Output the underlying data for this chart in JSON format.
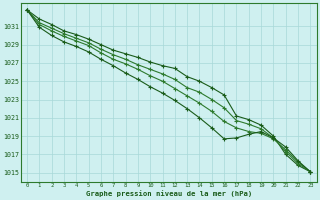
{
  "xlabel": "Graphe pression niveau de la mer (hPa)",
  "bg_color": "#cff0f0",
  "grid_color": "#a8d8d8",
  "line_colors": [
    "#1a5c1a",
    "#2d7a2d",
    "#2d7a2d",
    "#1a5c1a"
  ],
  "ylim": [
    1014.0,
    1033.5
  ],
  "xlim": [
    -0.5,
    23.5
  ],
  "yticks": [
    1015,
    1017,
    1019,
    1021,
    1023,
    1025,
    1027,
    1029,
    1031
  ],
  "xticks": [
    0,
    1,
    2,
    3,
    4,
    5,
    6,
    7,
    8,
    9,
    10,
    11,
    12,
    13,
    14,
    15,
    16,
    17,
    18,
    19,
    20,
    21,
    22,
    23
  ],
  "series": [
    [
      1032.8,
      1031.8,
      1031.2,
      1030.5,
      1030.1,
      1029.6,
      1029.0,
      1028.4,
      1028.0,
      1027.6,
      1027.1,
      1026.7,
      1026.4,
      1025.5,
      1025.0,
      1024.3,
      1023.5,
      1021.2,
      1020.8,
      1020.2,
      1019.0,
      1017.0,
      1015.8,
      1015.1
    ],
    [
      1032.8,
      1031.4,
      1030.8,
      1030.2,
      1029.7,
      1029.2,
      1028.5,
      1027.9,
      1027.4,
      1026.8,
      1026.3,
      1025.8,
      1025.2,
      1024.3,
      1023.8,
      1023.0,
      1022.1,
      1020.7,
      1020.3,
      1019.8,
      1018.8,
      1017.3,
      1016.0,
      1015.1
    ],
    [
      1032.8,
      1031.2,
      1030.5,
      1029.9,
      1029.4,
      1028.9,
      1028.1,
      1027.4,
      1026.9,
      1026.3,
      1025.6,
      1025.0,
      1024.2,
      1023.4,
      1022.6,
      1021.7,
      1020.6,
      1019.9,
      1019.5,
      1019.3,
      1018.7,
      1017.5,
      1016.2,
      1015.1
    ],
    [
      1032.8,
      1030.9,
      1030.0,
      1029.3,
      1028.8,
      1028.2,
      1027.4,
      1026.7,
      1025.9,
      1025.2,
      1024.4,
      1023.7,
      1022.9,
      1022.0,
      1021.0,
      1019.9,
      1018.7,
      1018.8,
      1019.2,
      1019.5,
      1018.8,
      1017.8,
      1016.3,
      1015.1
    ]
  ],
  "linewidth": 0.8,
  "markersize": 2.5
}
